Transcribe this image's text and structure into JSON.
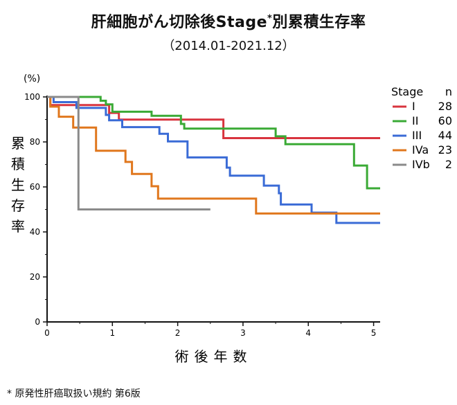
{
  "title": {
    "main": "肝細胞がん切除後Stage",
    "marker": "*",
    "suffix": "別累積生存率"
  },
  "subtitle": "（2014.01-2021.12）",
  "footnote": "* 原発性肝癌取扱い規約 第6版",
  "chart_data": {
    "type": "line",
    "step": true,
    "title": "肝細胞がん切除後Stage*別累積生存率",
    "subtitle": "（2014.01-2021.12）",
    "xlabel": "術後年数",
    "ylabel": "累積生存率",
    "y_unit": "(%)",
    "xlim": [
      0,
      5.1
    ],
    "ylim": [
      0,
      100
    ],
    "x_ticks": [
      0,
      1,
      2,
      3,
      4,
      5
    ],
    "y_ticks": [
      0,
      20,
      40,
      60,
      80,
      100
    ],
    "grid": false,
    "legend": {
      "position": "right",
      "header": [
        "Stage",
        "n"
      ]
    },
    "series": [
      {
        "name": "I",
        "n": "28",
        "color": "#d8343e",
        "points": [
          [
            0,
            100
          ],
          [
            0.05,
            96.4
          ],
          [
            0.95,
            92.9
          ],
          [
            1.1,
            89.9
          ],
          [
            2.7,
            81.7
          ],
          [
            5.1,
            81.7
          ]
        ]
      },
      {
        "name": "II",
        "n": "60",
        "color": "#3aaa35",
        "points": [
          [
            0,
            100
          ],
          [
            0.82,
            98.3
          ],
          [
            0.9,
            96.7
          ],
          [
            1.0,
            93.4
          ],
          [
            1.6,
            91.6
          ],
          [
            2.05,
            88.0
          ],
          [
            2.1,
            85.9
          ],
          [
            3.5,
            82.5
          ],
          [
            3.65,
            79.0
          ],
          [
            4.7,
            69.5
          ],
          [
            4.9,
            59.4
          ],
          [
            5.1,
            59.4
          ]
        ]
      },
      {
        "name": "III",
        "n": "44",
        "color": "#3a6bd6",
        "points": [
          [
            0,
            100
          ],
          [
            0.1,
            97.7
          ],
          [
            0.45,
            95.1
          ],
          [
            0.9,
            92.0
          ],
          [
            0.95,
            89.6
          ],
          [
            1.15,
            86.6
          ],
          [
            1.72,
            83.6
          ],
          [
            1.85,
            80.2
          ],
          [
            2.15,
            73.1
          ],
          [
            2.75,
            68.6
          ],
          [
            2.8,
            65.0
          ],
          [
            3.32,
            60.6
          ],
          [
            3.55,
            57.2
          ],
          [
            3.58,
            52.2
          ],
          [
            4.05,
            48.6
          ],
          [
            4.43,
            44.0
          ],
          [
            5.1,
            44.0
          ]
        ]
      },
      {
        "name": "IVa",
        "n": "23",
        "color": "#e0771d",
        "points": [
          [
            0,
            100
          ],
          [
            0.05,
            95.7
          ],
          [
            0.18,
            91.2
          ],
          [
            0.4,
            86.4
          ],
          [
            0.75,
            76.1
          ],
          [
            1.2,
            71.1
          ],
          [
            1.3,
            65.8
          ],
          [
            1.6,
            60.3
          ],
          [
            1.7,
            54.8
          ],
          [
            3.2,
            48.2
          ],
          [
            5.1,
            48.2
          ]
        ]
      },
      {
        "name": "IVb",
        "n": "2",
        "color": "#8a8a8a",
        "points": [
          [
            0,
            100
          ],
          [
            0.48,
            50.0
          ],
          [
            2.5,
            50.0
          ]
        ]
      }
    ]
  }
}
